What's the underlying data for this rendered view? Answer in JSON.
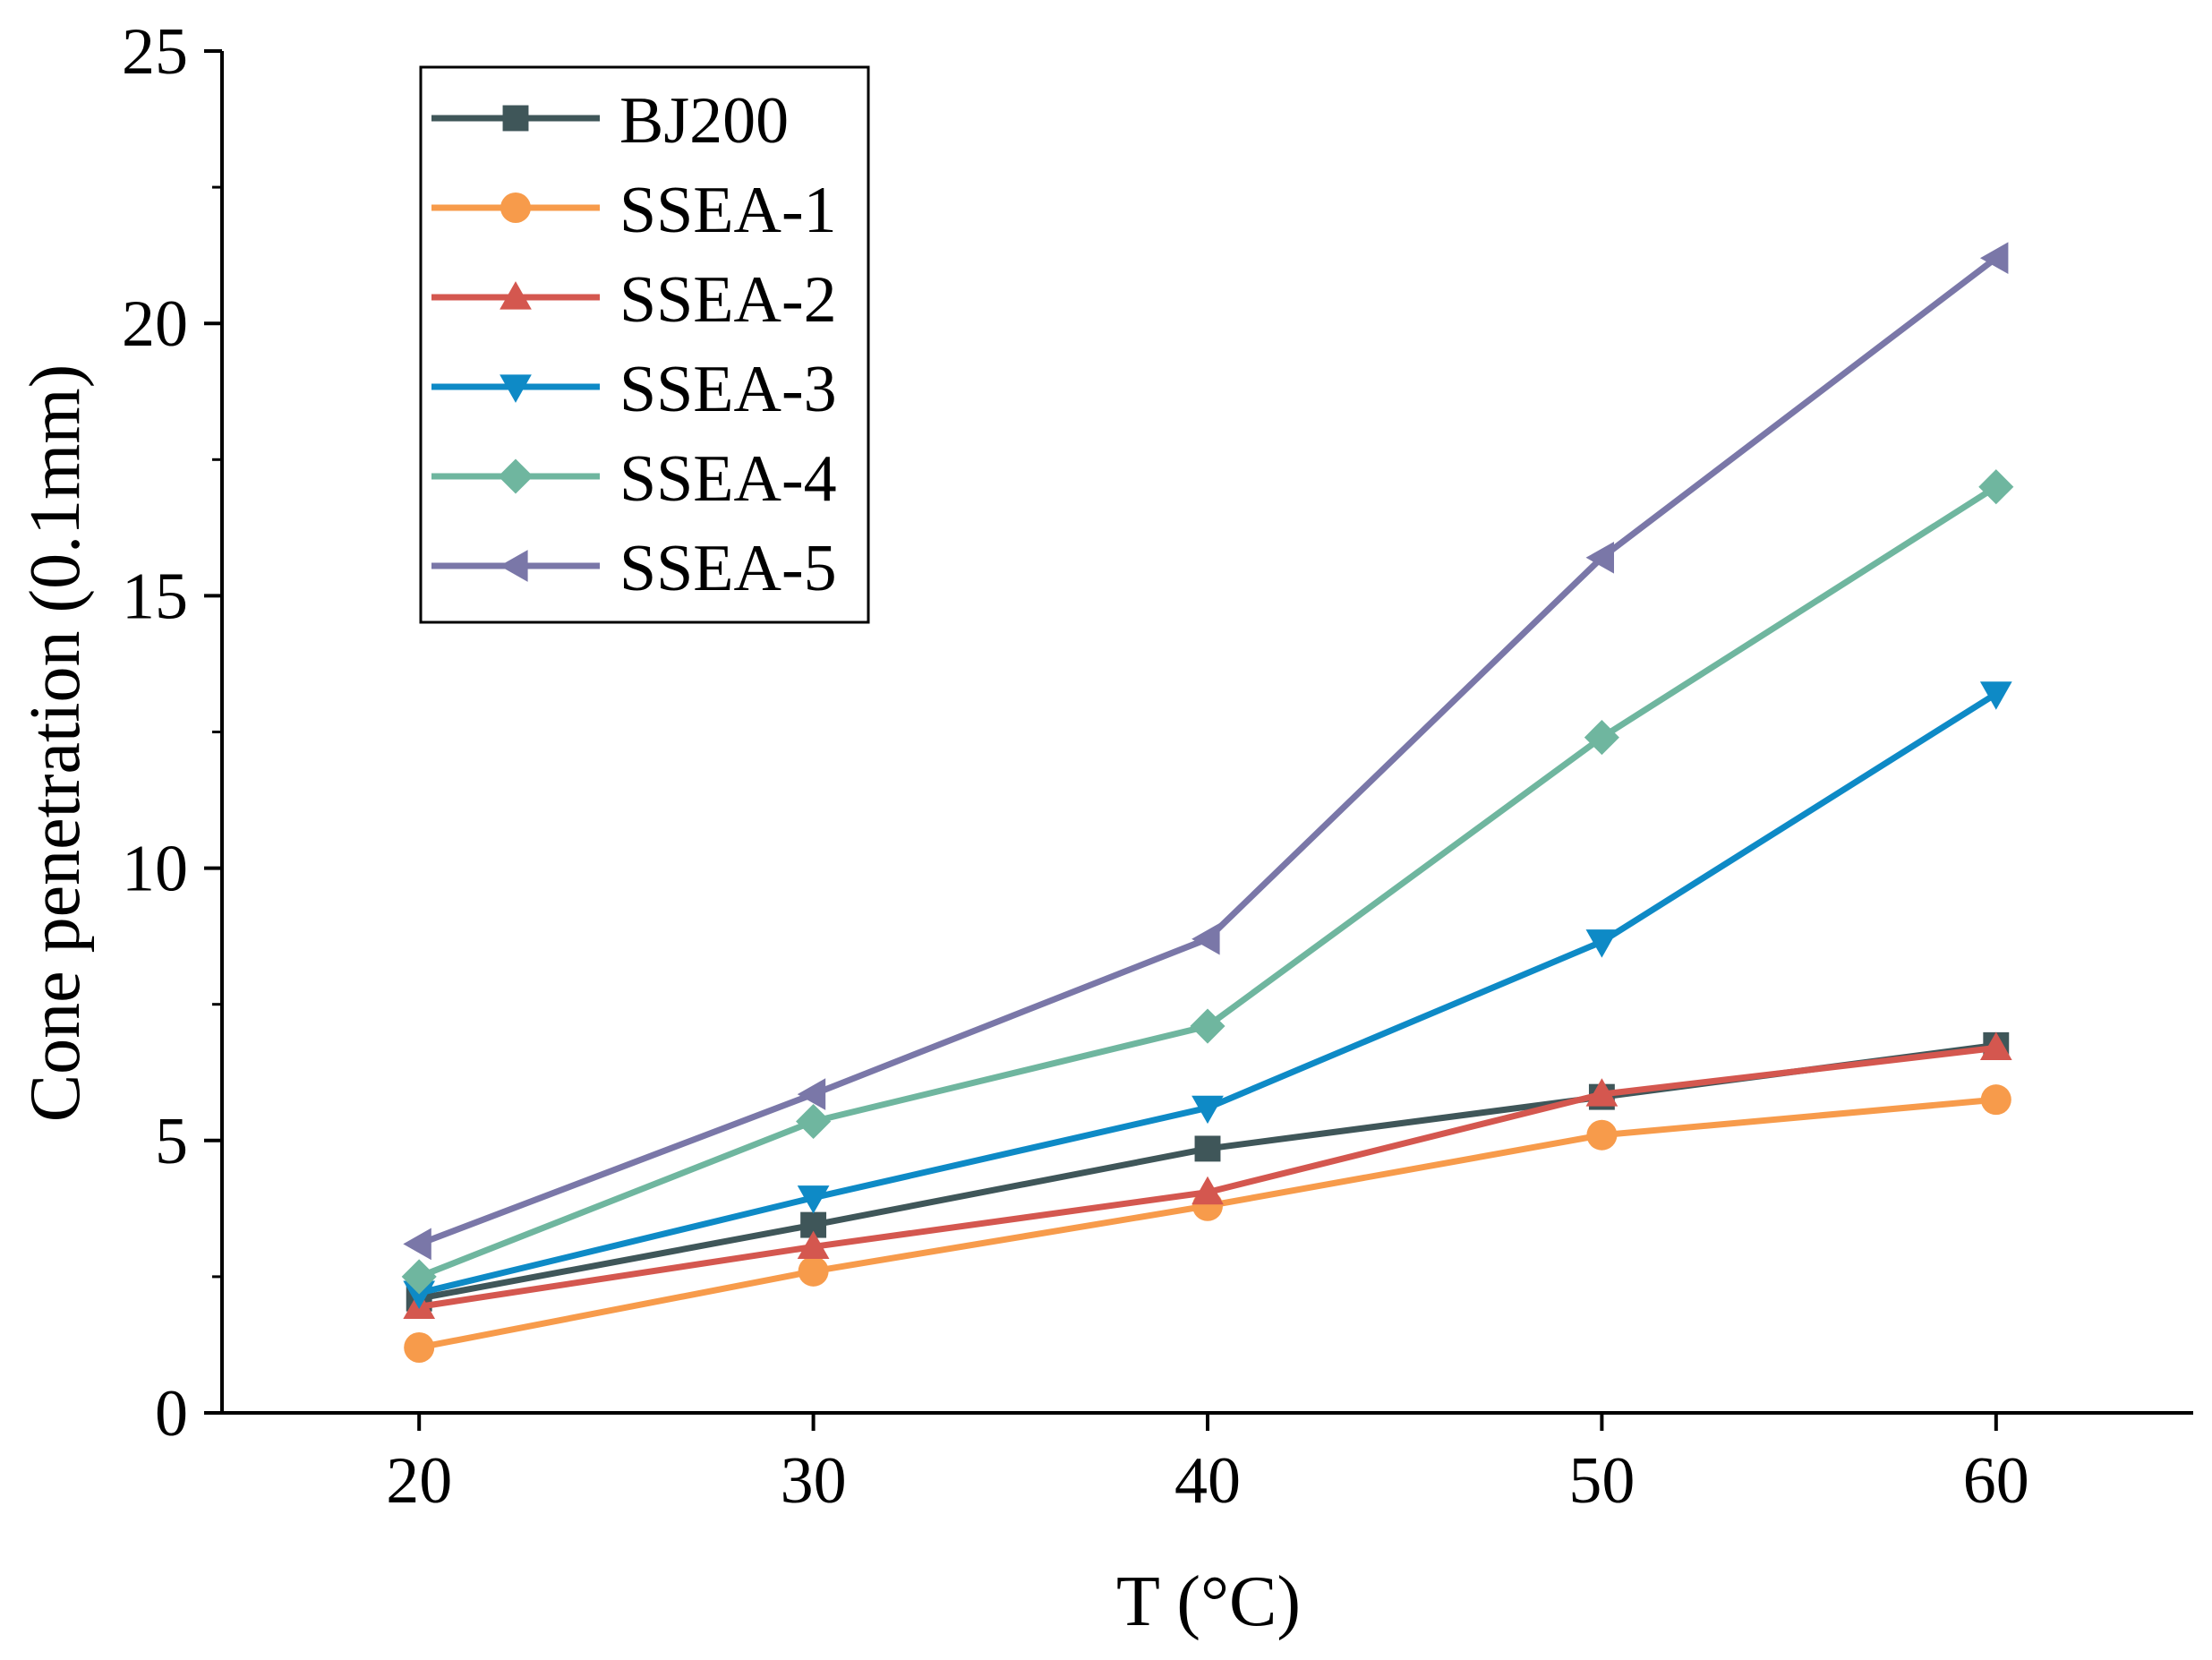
{
  "chart_data": {
    "type": "line",
    "title": "",
    "xlabel": "T (°C)",
    "ylabel": "Cone penetration (0.1mm)",
    "xlim": [
      15,
      65
    ],
    "ylim": [
      0,
      25
    ],
    "xticks": [
      20,
      30,
      40,
      50,
      60
    ],
    "yticks": [
      0,
      5,
      10,
      15,
      20,
      25
    ],
    "x_tick_labels": [
      "20",
      "30",
      "40",
      "50",
      "60"
    ],
    "y_tick_labels": [
      "0",
      "5",
      "10",
      "15",
      "20",
      "25"
    ],
    "x": [
      20,
      30,
      40,
      50,
      60
    ],
    "grid": false,
    "legend_position": "top-left",
    "series": [
      {
        "name": "BJ200",
        "values": [
          2.1,
          3.45,
          4.85,
          5.8,
          6.75
        ],
        "color": "#3f5659",
        "marker": "square"
      },
      {
        "name": "SSEA-1",
        "values": [
          1.2,
          2.6,
          3.8,
          5.1,
          5.75
        ],
        "color": "#f79b4b",
        "marker": "circle"
      },
      {
        "name": "SSEA-2",
        "values": [
          1.95,
          3.05,
          4.05,
          5.85,
          6.7
        ],
        "color": "#d4574f",
        "marker": "triangle-up"
      },
      {
        "name": "SSEA-3",
        "values": [
          2.2,
          3.95,
          5.6,
          8.65,
          13.2
        ],
        "color": "#0e8ac6",
        "marker": "triangle-down"
      },
      {
        "name": "SSEA-4",
        "values": [
          2.5,
          5.35,
          7.1,
          12.4,
          17.0
        ],
        "color": "#6fb69f",
        "marker": "diamond"
      },
      {
        "name": "SSEA-5",
        "values": [
          3.1,
          5.85,
          8.7,
          15.7,
          21.2
        ],
        "color": "#7a77a8",
        "marker": "triangle-left"
      }
    ]
  }
}
